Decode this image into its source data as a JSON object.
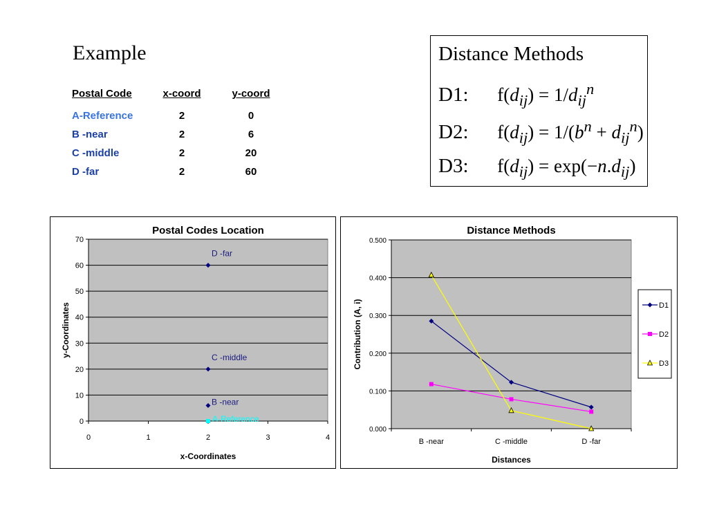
{
  "heading": "Example",
  "table": {
    "headers": [
      "Postal Code",
      "x-coord",
      "y-coord"
    ],
    "rows": [
      {
        "name": "A-Reference",
        "x": "2",
        "y": "0"
      },
      {
        "name": "B -near",
        "x": "2",
        "y": "6"
      },
      {
        "name": "C -middle",
        "x": "2",
        "y": "20"
      },
      {
        "name": "D -far",
        "x": "2",
        "y": "60"
      }
    ]
  },
  "methods": {
    "title": "Distance Methods",
    "items": [
      {
        "label": "D1:",
        "formula": "f(dij) = 1/dij^n"
      },
      {
        "label": "D2:",
        "formula": "f(dij) = 1/(b^n + dij^n)"
      },
      {
        "label": "D3:",
        "formula": "f(dij) = exp(−n.dij)"
      }
    ]
  },
  "colors": {
    "plot_bg": "#c0c0c0",
    "navy": "#000080",
    "magenta": "#ff00ff",
    "yellow": "#ffff00",
    "cyan": "#00ffff",
    "reference_blue": "#3973e0",
    "table_blue": "#1a3fa8"
  },
  "chart_data": [
    {
      "type": "scatter",
      "title": "Postal Codes Location",
      "xlabel": "x-Coordinates",
      "ylabel": "y-Coordinates",
      "xlim": [
        0,
        4
      ],
      "ylim": [
        0,
        70
      ],
      "xticks": [
        0,
        1,
        2,
        3,
        4
      ],
      "yticks": [
        0,
        10,
        20,
        30,
        40,
        50,
        60,
        70
      ],
      "grid": "horizontal",
      "points": [
        {
          "label": "A-Reference",
          "x": 2,
          "y": 0,
          "marker": "square",
          "color": "#00ffff"
        },
        {
          "label": "B -near",
          "x": 2,
          "y": 6,
          "marker": "diamond",
          "color": "#000080"
        },
        {
          "label": "C -middle",
          "x": 2,
          "y": 20,
          "marker": "diamond",
          "color": "#000080"
        },
        {
          "label": "D -far",
          "x": 2,
          "y": 60,
          "marker": "diamond",
          "color": "#000080"
        }
      ]
    },
    {
      "type": "line",
      "title": "Distance Methods",
      "xlabel": "Distances",
      "ylabel": "Contribution (A, i)",
      "categories": [
        "B -near",
        "C -middle",
        "D -far"
      ],
      "ylim": [
        0,
        0.5
      ],
      "yticks": [
        "0.000",
        "0.100",
        "0.200",
        "0.300",
        "0.400",
        "0.500"
      ],
      "grid": "horizontal",
      "legend": "right",
      "series": [
        {
          "name": "D1",
          "values": [
            0.285,
            0.123,
            0.057
          ],
          "color": "#000080",
          "marker": "diamond"
        },
        {
          "name": "D2",
          "values": [
            0.118,
            0.078,
            0.045
          ],
          "color": "#ff00ff",
          "marker": "square"
        },
        {
          "name": "D3",
          "values": [
            0.407,
            0.048,
            0.0
          ],
          "color": "#ffff00",
          "marker": "triangle"
        }
      ]
    }
  ]
}
